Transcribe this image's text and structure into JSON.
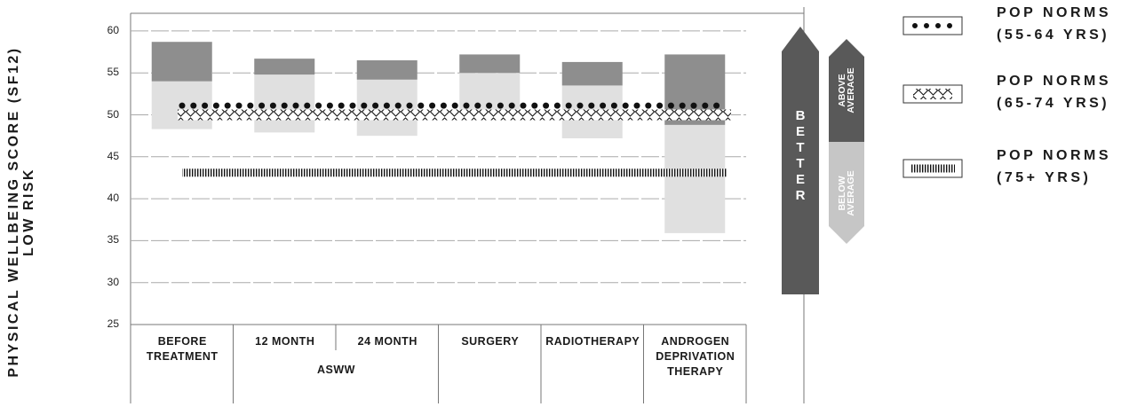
{
  "chart_data": {
    "type": "range_bar",
    "y_axis_title": "PHYSICAL WELLBEING SCORE (SF12)\nLOW RISK",
    "categories": [
      "BEFORE\nTREATMENT",
      "12 MONTH",
      "24 MONTH",
      "SURGERY",
      "RADIOTHERAPY",
      "ANDROGEN\nDEPRIVATION\nTHERAPY"
    ],
    "group_label": "ASWW",
    "low": [
      48.3,
      47.9,
      47.5,
      49.6,
      47.2,
      35.9
    ],
    "mid": [
      54.0,
      54.8,
      54.2,
      55.0,
      53.5,
      48.8
    ],
    "high": [
      58.7,
      56.7,
      56.5,
      57.2,
      56.3,
      57.2
    ],
    "above_label": "ABOVE\nAVERAGE",
    "below_label": "BELOW\nAVERAGE",
    "above_color": "#8e8e8e",
    "below_color": "#e0e0e0",
    "better_label": "BETTER",
    "reference_lines": [
      {
        "name": "POP NORMS\n(55-64 YRS)",
        "value": 51.1,
        "style": "dots"
      },
      {
        "name": "POP NORMS\n(65-74 YRS)",
        "value": 50.0,
        "style": "diamonds"
      },
      {
        "name": "POP NORMS\n(75+ YRS)",
        "value": 43.1,
        "style": "hatch"
      }
    ],
    "ylim": [
      25,
      62
    ],
    "yticks": [
      25,
      30,
      35,
      40,
      45,
      50,
      55,
      60
    ],
    "grid": true
  }
}
